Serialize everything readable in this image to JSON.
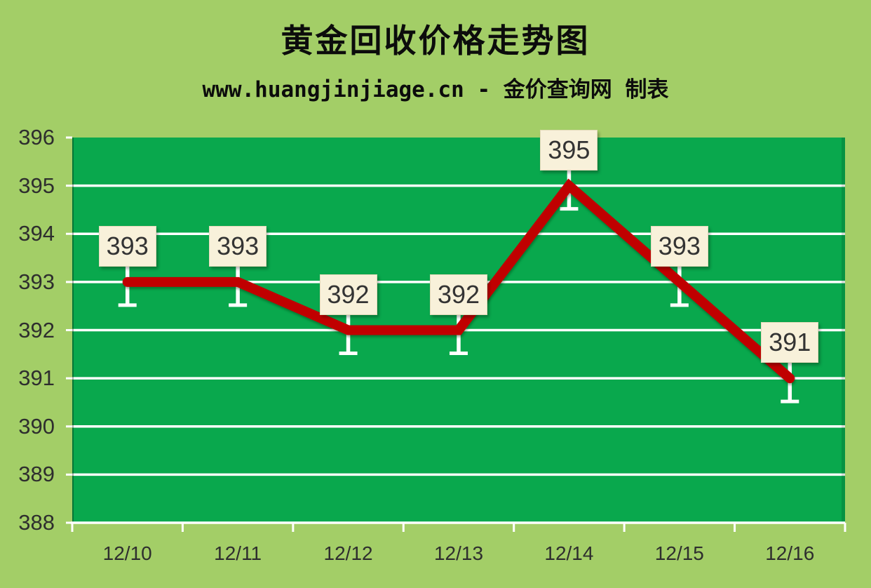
{
  "header": {
    "title": "黄金回收价格走势图",
    "subtitle": "www.huangjinjiage.cn - 金价查询网 制表"
  },
  "chart_data": {
    "type": "line",
    "title": "黄金回收价格走势图",
    "subtitle": "www.huangjinjiage.cn - 金价查询网 制表",
    "categories": [
      "12/10",
      "12/11",
      "12/12",
      "12/13",
      "12/14",
      "12/15",
      "12/16"
    ],
    "values": [
      393,
      393,
      392,
      392,
      395,
      393,
      391
    ],
    "data_labels_shown": true,
    "xlabel": "",
    "ylabel": "",
    "ylim": [
      388,
      396
    ],
    "yticks": [
      396,
      395,
      394,
      393,
      392,
      391,
      390,
      389,
      388
    ],
    "grid": "horizontal-white",
    "legend": "none",
    "colors": {
      "page_bg": "#A3CE67",
      "plot_bg": "#09A84D",
      "gridline": "#FFFFFF",
      "line": "#C00000",
      "label_box_bg": "#F8F1DA",
      "label_box_border": "#E3DABA",
      "label_text": "#333333",
      "axis_text": "#2E2E2E",
      "title_text": "#0C0C0C"
    }
  }
}
